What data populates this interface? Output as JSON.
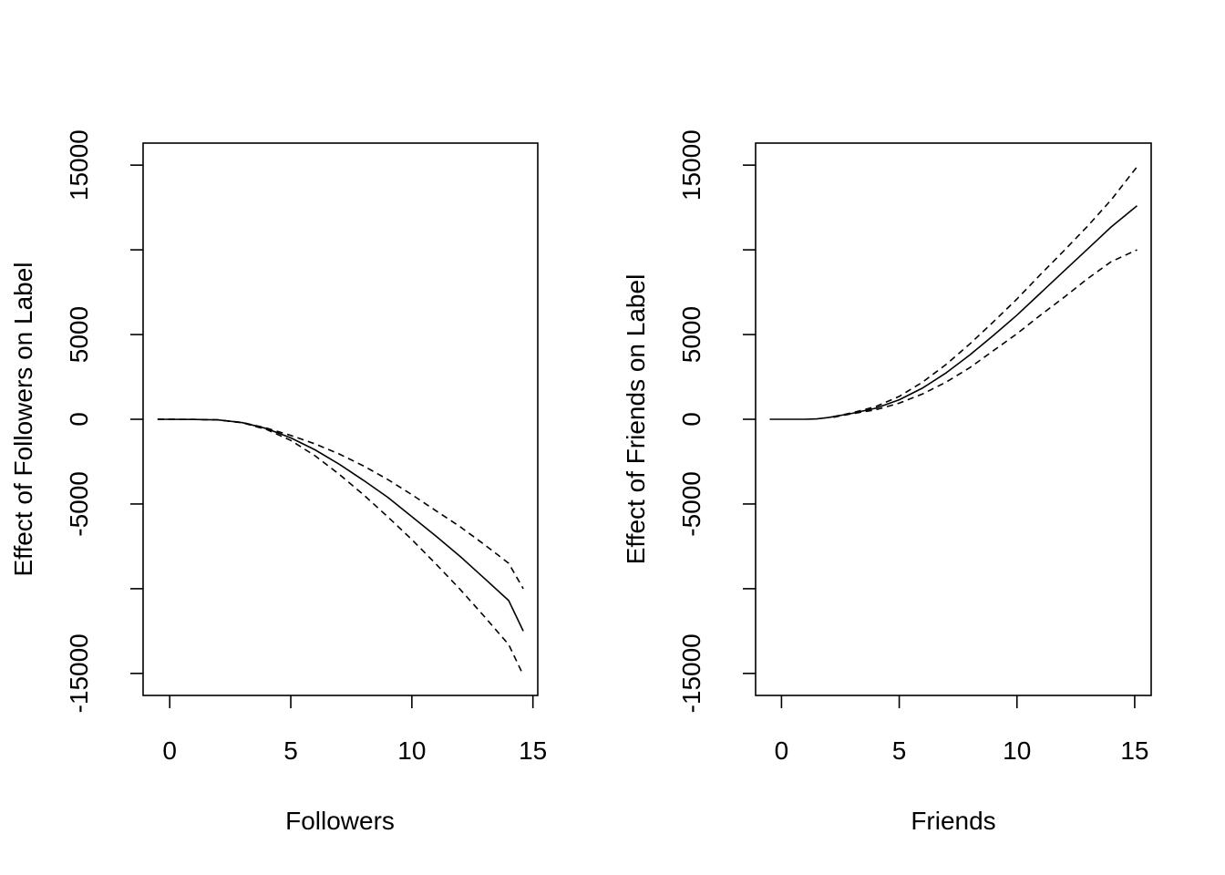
{
  "chart_data": [
    {
      "type": "line",
      "xlabel": "Followers",
      "ylabel": "Effect of Followers on Label",
      "xlim": [
        -1.1,
        15.2
      ],
      "ylim": [
        -16300,
        16300
      ],
      "x_ticks": [
        0,
        5,
        10,
        15
      ],
      "y_ticks": [
        -15000,
        -10000,
        -5000,
        0,
        5000,
        10000,
        15000
      ],
      "y_tick_labels": [
        "-15000",
        "",
        "-5000",
        "0",
        "5000",
        "",
        "15000"
      ],
      "series": [
        {
          "style": "solid",
          "x": [
            -0.5,
            1,
            2,
            3,
            4,
            5,
            6,
            7,
            8,
            9,
            10,
            11,
            12,
            13,
            14,
            14.6
          ],
          "y": [
            0,
            -10,
            -40,
            -200,
            -550,
            -1100,
            -1800,
            -2650,
            -3600,
            -4600,
            -5750,
            -6900,
            -8100,
            -9400,
            -10700,
            -12500
          ]
        },
        {
          "style": "dashed",
          "x": [
            -0.5,
            1,
            2,
            3,
            4,
            5,
            6,
            7,
            8,
            9,
            10,
            11,
            12,
            13,
            14,
            14.6
          ],
          "y": [
            0,
            -10,
            -40,
            -190,
            -520,
            -950,
            -1450,
            -2050,
            -2750,
            -3550,
            -4450,
            -5400,
            -6350,
            -7400,
            -8500,
            -10000
          ]
        },
        {
          "style": "dashed",
          "x": [
            -0.5,
            1,
            2,
            3,
            4,
            5,
            6,
            7,
            8,
            9,
            10,
            11,
            12,
            13,
            14,
            14.6
          ],
          "y": [
            0,
            -10,
            -40,
            -210,
            -600,
            -1250,
            -2150,
            -3250,
            -4450,
            -5750,
            -7100,
            -8550,
            -10050,
            -11650,
            -13300,
            -15100
          ]
        }
      ]
    },
    {
      "type": "line",
      "xlabel": "Friends",
      "ylabel": "Effect of Friends on Label",
      "xlim": [
        -1.1,
        15.7
      ],
      "ylim": [
        -16300,
        16300
      ],
      "x_ticks": [
        0,
        5,
        10,
        15
      ],
      "y_ticks": [
        -15000,
        -10000,
        -5000,
        0,
        5000,
        10000,
        15000
      ],
      "y_tick_labels": [
        "-15000",
        "",
        "-5000",
        "0",
        "5000",
        "",
        "15000"
      ],
      "series": [
        {
          "style": "solid",
          "x": [
            -0.5,
            1,
            1.5,
            2,
            3,
            4,
            5,
            6,
            7,
            8,
            9,
            10,
            11,
            12,
            13,
            14,
            15.1
          ],
          "y": [
            0,
            0,
            20,
            100,
            350,
            650,
            1150,
            1850,
            2750,
            3800,
            4950,
            6150,
            7450,
            8750,
            10050,
            11350,
            12600
          ]
        },
        {
          "style": "dashed",
          "x": [
            2.2,
            3,
            4,
            5,
            6,
            7,
            8,
            9,
            10,
            11,
            12,
            13,
            14,
            15.1
          ],
          "y": [
            150,
            380,
            750,
            1350,
            2200,
            3250,
            4450,
            5750,
            7100,
            8550,
            9950,
            11400,
            12950,
            14900
          ]
        },
        {
          "style": "dashed",
          "x": [
            2.2,
            3,
            4,
            5,
            6,
            7,
            8,
            9,
            10,
            11,
            12,
            13,
            14,
            15.1
          ],
          "y": [
            120,
            330,
            560,
            950,
            1500,
            2200,
            3050,
            4050,
            5050,
            6150,
            7200,
            8300,
            9300,
            10000
          ]
        }
      ]
    }
  ]
}
